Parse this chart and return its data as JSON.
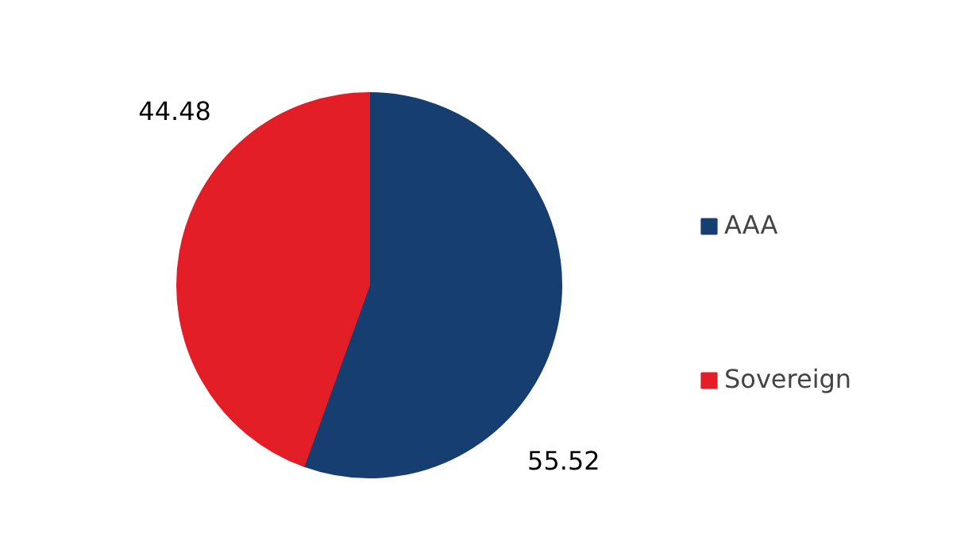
{
  "chart_data": {
    "type": "pie",
    "categories": [
      "AAA",
      "Sovereign"
    ],
    "values": [
      55.52,
      44.48
    ],
    "colors": [
      "#173e70",
      "#e31e26"
    ],
    "data_labels": true,
    "legend": "right"
  }
}
